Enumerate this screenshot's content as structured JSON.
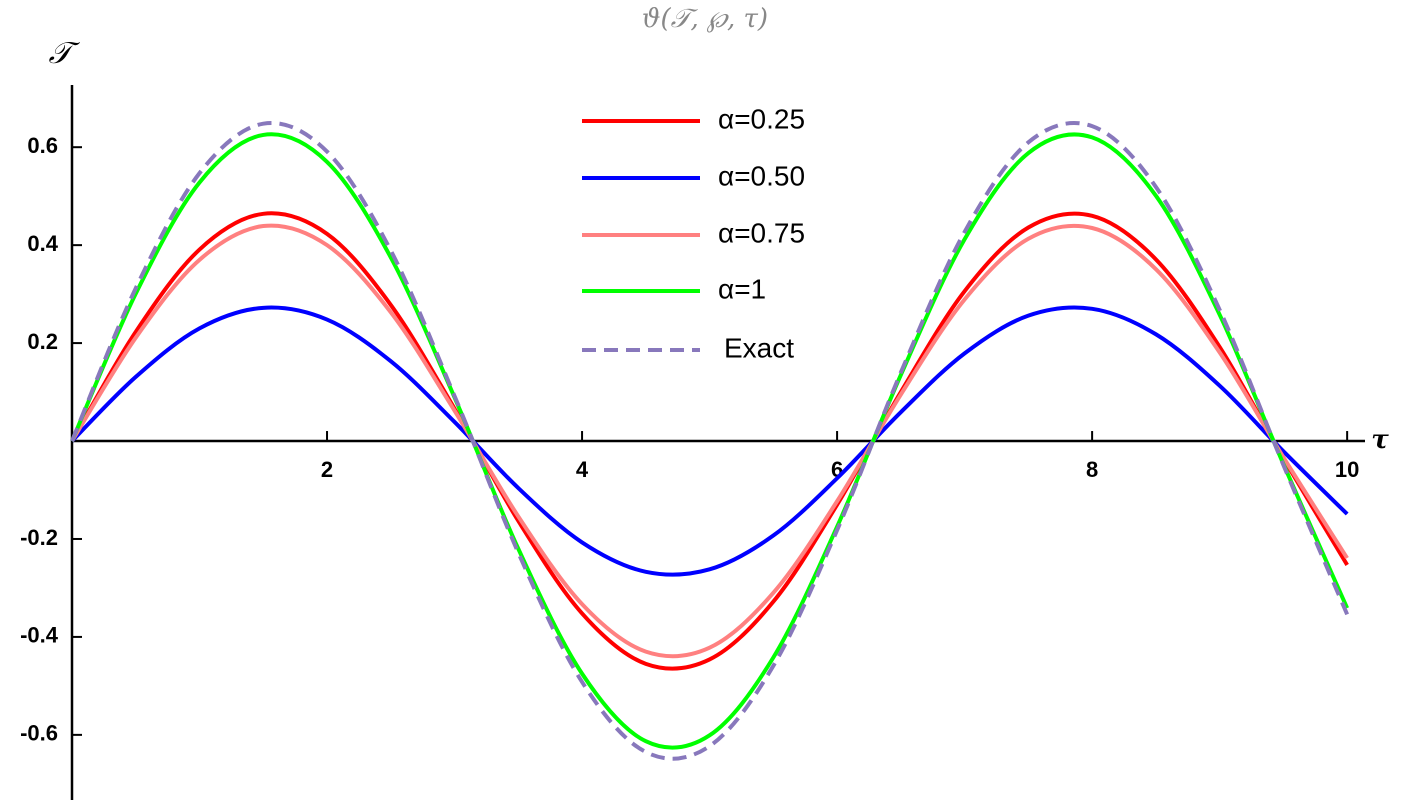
{
  "chart_data": {
    "type": "line",
    "title": "ϑ(𝒯, ℘, τ)",
    "x_label": "τ",
    "y_label": "𝒯",
    "x": [
      0,
      0.5,
      1,
      1.5,
      2,
      2.5,
      3,
      3.5,
      4,
      4.5,
      5,
      5.5,
      6,
      6.5,
      7,
      7.5,
      8,
      8.5,
      9,
      9.5,
      10
    ],
    "series": [
      {
        "name": "α=0.25",
        "color": "#ff0000",
        "dash": false,
        "values": [
          0,
          0.223,
          0.391,
          0.464,
          0.423,
          0.278,
          0.066,
          -0.163,
          -0.352,
          -0.455,
          -0.446,
          -0.328,
          -0.13,
          0.1,
          0.306,
          0.436,
          0.46,
          0.371,
          0.192,
          -0.035,
          -0.253
        ]
      },
      {
        "name": "α=0.50",
        "color": "#0000ff",
        "dash": false,
        "values": [
          0,
          0.131,
          0.23,
          0.272,
          0.248,
          0.163,
          0.039,
          -0.096,
          -0.207,
          -0.267,
          -0.262,
          -0.193,
          -0.076,
          0.059,
          0.179,
          0.256,
          0.27,
          0.218,
          0.113,
          -0.021,
          -0.149
        ]
      },
      {
        "name": "α=0.75",
        "color": "#ff8080",
        "dash": false,
        "values": [
          0,
          0.211,
          0.37,
          0.439,
          0.4,
          0.263,
          0.062,
          -0.154,
          -0.333,
          -0.43,
          -0.422,
          -0.31,
          -0.123,
          0.095,
          0.289,
          0.413,
          0.435,
          0.351,
          0.181,
          -0.033,
          -0.239
        ]
      },
      {
        "name": "α=1",
        "color": "#00ff00",
        "dash": false,
        "values": [
          0,
          0.301,
          0.528,
          0.625,
          0.57,
          0.375,
          0.089,
          -0.22,
          -0.475,
          -0.613,
          -0.601,
          -0.442,
          -0.175,
          0.135,
          0.412,
          0.588,
          0.62,
          0.501,
          0.258,
          -0.047,
          -0.341
        ]
      },
      {
        "name": "Exact",
        "color": "#8878bc",
        "dash": true,
        "values": [
          0,
          0.312,
          0.547,
          0.648,
          0.591,
          0.389,
          0.092,
          -0.228,
          -0.492,
          -0.635,
          -0.623,
          -0.459,
          -0.182,
          0.14,
          0.427,
          0.61,
          0.643,
          0.519,
          0.268,
          -0.049,
          -0.354
        ]
      }
    ],
    "xlim": [
      0,
      10.14
    ],
    "ylim": [
      -0.733,
      0.727
    ],
    "xticks": [
      2,
      4,
      6,
      8,
      10
    ],
    "yticks": [
      -0.6,
      -0.4,
      -0.2,
      0.2,
      0.4,
      0.6
    ]
  }
}
